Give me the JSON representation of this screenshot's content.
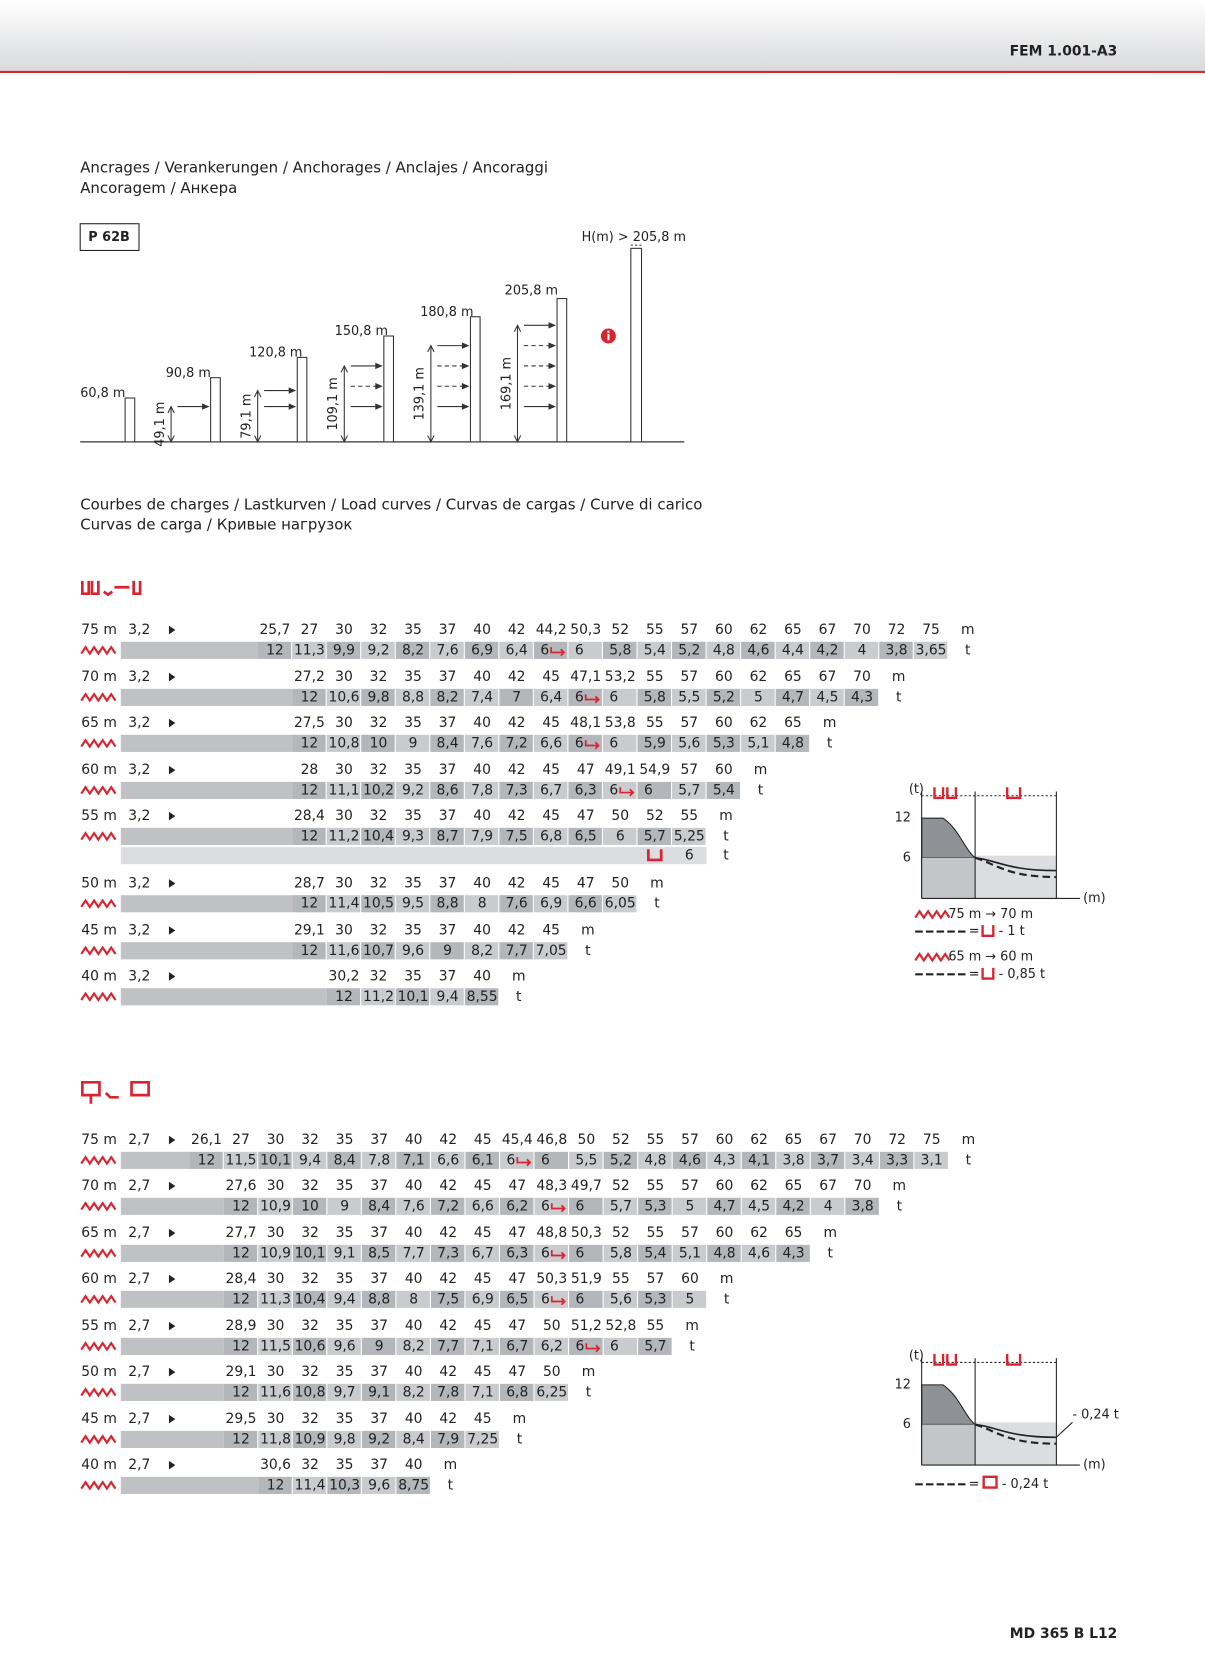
{
  "header": {
    "code": "FEM 1.001-A3"
  },
  "footer": {
    "model": "MD 365 B L12"
  },
  "anchorages": {
    "title_1": "Ancrages / Verankerungen / Anchorages / Anclajes / Ancoraggi",
    "title_2": "Ancoragem / Анкера",
    "model": "P 62B",
    "heights": [
      "60,8 m",
      "90,8 m",
      "120,8 m",
      "150,8 m",
      "180,8 m",
      "205,8 m"
    ],
    "max": "H(m) > 205,8 m",
    "spacings": [
      "49,1 m",
      "79,1 m",
      "109,1 m",
      "139,1 m",
      "169,1 m"
    ]
  },
  "load_curves": {
    "title_1": "Courbes de charges / Lastkurven / Load curves / Curvas de cargas / Curve di carico",
    "title_2": "Curvas de carga / Кривые нагрузок"
  },
  "tables": [
    {
      "units": {
        "radius": "m",
        "load": "t"
      },
      "rows": [
        {
          "jib": "75 m",
          "min": "3,2",
          "radii": [
            "25,7",
            "27",
            "30",
            "32",
            "35",
            "37",
            "40",
            "42",
            "44,2",
            "50,3",
            "52",
            "55",
            "57",
            "60",
            "62",
            "65",
            "67",
            "70",
            "72",
            "75"
          ],
          "loads": [
            "12",
            "11,3",
            "9,9",
            "9,2",
            "8,2",
            "7,6",
            "6,9",
            "6,4",
            "6",
            "6",
            "5,8",
            "5,4",
            "5,2",
            "4,8",
            "4,6",
            "4,4",
            "4,2",
            "4",
            "3,8",
            "3,65"
          ]
        },
        {
          "jib": "70 m",
          "min": "3,2",
          "radii": [
            "27,2",
            "30",
            "32",
            "35",
            "37",
            "40",
            "42",
            "45",
            "47,1",
            "53,2",
            "55",
            "57",
            "60",
            "62",
            "65",
            "67",
            "70"
          ],
          "loads": [
            "12",
            "10,6",
            "9,8",
            "8,8",
            "8,2",
            "7,4",
            "7",
            "6,4",
            "6",
            "6",
            "5,8",
            "5,5",
            "5,2",
            "5",
            "4,7",
            "4,5",
            "4,3"
          ]
        },
        {
          "jib": "65 m",
          "min": "3,2",
          "radii": [
            "27,5",
            "30",
            "32",
            "35",
            "37",
            "40",
            "42",
            "45",
            "48,1",
            "53,8",
            "55",
            "57",
            "60",
            "62",
            "65"
          ],
          "loads": [
            "12",
            "10,8",
            "10",
            "9",
            "8,4",
            "7,6",
            "7,2",
            "6,6",
            "6",
            "6",
            "5,9",
            "5,6",
            "5,3",
            "5,1",
            "4,8"
          ]
        },
        {
          "jib": "60 m",
          "min": "3,2",
          "radii": [
            "28",
            "30",
            "32",
            "35",
            "37",
            "40",
            "42",
            "45",
            "47",
            "49,1",
            "54,9",
            "57",
            "60"
          ],
          "loads": [
            "12",
            "11,1",
            "10,2",
            "9,2",
            "8,6",
            "7,8",
            "7,3",
            "6,7",
            "6,3",
            "6",
            "6",
            "5,7",
            "5,4"
          ]
        },
        {
          "jib": "55 m",
          "min": "3,2",
          "radii": [
            "28,4",
            "30",
            "32",
            "35",
            "37",
            "40",
            "42",
            "45",
            "47",
            "50",
            "52",
            "55"
          ],
          "loads": [
            "12",
            "11,2",
            "10,4",
            "9,3",
            "8,7",
            "7,9",
            "7,5",
            "6,8",
            "6,5",
            "6",
            "5,7",
            "5,25"
          ],
          "alt_load": "6"
        },
        {
          "jib": "50 m",
          "min": "3,2",
          "radii": [
            "28,7",
            "30",
            "32",
            "35",
            "37",
            "40",
            "42",
            "45",
            "47",
            "50"
          ],
          "loads": [
            "12",
            "11,4",
            "10,5",
            "9,5",
            "8,8",
            "8",
            "7,6",
            "6,9",
            "6,6",
            "6,05"
          ]
        },
        {
          "jib": "45 m",
          "min": "3,2",
          "radii": [
            "29,1",
            "30",
            "32",
            "35",
            "37",
            "40",
            "42",
            "45"
          ],
          "loads": [
            "12",
            "11,6",
            "10,7",
            "9,6",
            "9",
            "8,2",
            "7,7",
            "7,05"
          ]
        },
        {
          "jib": "40 m",
          "min": "3,2",
          "radii": [
            "30,2",
            "32",
            "35",
            "37",
            "40"
          ],
          "loads": [
            "12",
            "11,2",
            "10,1",
            "9,4",
            "8,55"
          ]
        }
      ]
    },
    {
      "units": {
        "radius": "m",
        "load": "t"
      },
      "rows": [
        {
          "jib": "75 m",
          "min": "2,7",
          "radii": [
            "26,1",
            "27",
            "30",
            "32",
            "35",
            "37",
            "40",
            "42",
            "45",
            "45,4",
            "46,8",
            "50",
            "52",
            "55",
            "57",
            "60",
            "62",
            "65",
            "67",
            "70",
            "72",
            "75"
          ],
          "loads": [
            "12",
            "11,5",
            "10,1",
            "9,4",
            "8,4",
            "7,8",
            "7,1",
            "6,6",
            "6,1",
            "6",
            "6",
            "5,5",
            "5,2",
            "4,8",
            "4,6",
            "4,3",
            "4,1",
            "3,8",
            "3,7",
            "3,4",
            "3,3",
            "3,1"
          ]
        },
        {
          "jib": "70 m",
          "min": "2,7",
          "radii": [
            "27,6",
            "30",
            "32",
            "35",
            "37",
            "40",
            "42",
            "45",
            "47",
            "48,3",
            "49,7",
            "52",
            "55",
            "57",
            "60",
            "62",
            "65",
            "67",
            "70"
          ],
          "loads": [
            "12",
            "10,9",
            "10",
            "9",
            "8,4",
            "7,6",
            "7,2",
            "6,6",
            "6,2",
            "6",
            "6",
            "5,7",
            "5,3",
            "5",
            "4,7",
            "4,5",
            "4,2",
            "4",
            "3,8"
          ]
        },
        {
          "jib": "65 m",
          "min": "2,7",
          "radii": [
            "27,7",
            "30",
            "32",
            "35",
            "37",
            "40",
            "42",
            "45",
            "47",
            "48,8",
            "50,3",
            "52",
            "55",
            "57",
            "60",
            "62",
            "65"
          ],
          "loads": [
            "12",
            "10,9",
            "10,1",
            "9,1",
            "8,5",
            "7,7",
            "7,3",
            "6,7",
            "6,3",
            "6",
            "6",
            "5,8",
            "5,4",
            "5,1",
            "4,8",
            "4,6",
            "4,3"
          ]
        },
        {
          "jib": "60 m",
          "min": "2,7",
          "radii": [
            "28,4",
            "30",
            "32",
            "35",
            "37",
            "40",
            "42",
            "45",
            "47",
            "50,3",
            "51,9",
            "55",
            "57",
            "60"
          ],
          "loads": [
            "12",
            "11,3",
            "10,4",
            "9,4",
            "8,8",
            "8",
            "7,5",
            "6,9",
            "6,5",
            "6",
            "6",
            "5,6",
            "5,3",
            "5"
          ]
        },
        {
          "jib": "55 m",
          "min": "2,7",
          "radii": [
            "28,9",
            "30",
            "32",
            "35",
            "37",
            "40",
            "42",
            "45",
            "47",
            "50",
            "51,2",
            "52,8",
            "55"
          ],
          "loads": [
            "12",
            "11,5",
            "10,6",
            "9,6",
            "9",
            "8,2",
            "7,7",
            "7,1",
            "6,7",
            "6,2",
            "6",
            "6",
            "5,7"
          ]
        },
        {
          "jib": "50 m",
          "min": "2,7",
          "radii": [
            "29,1",
            "30",
            "32",
            "35",
            "37",
            "40",
            "42",
            "45",
            "47",
            "50"
          ],
          "loads": [
            "12",
            "11,6",
            "10,8",
            "9,7",
            "9,1",
            "8,2",
            "7,8",
            "7,1",
            "6,8",
            "6,25"
          ]
        },
        {
          "jib": "45 m",
          "min": "2,7",
          "radii": [
            "29,5",
            "30",
            "32",
            "35",
            "37",
            "40",
            "42",
            "45"
          ],
          "loads": [
            "12",
            "11,8",
            "10,9",
            "9,8",
            "9,2",
            "8,4",
            "7,9",
            "7,25"
          ]
        },
        {
          "jib": "40 m",
          "min": "2,7",
          "radii": [
            "30,6",
            "32",
            "35",
            "37",
            "40"
          ],
          "loads": [
            "12",
            "11,4",
            "10,3",
            "9,6",
            "8,75"
          ]
        }
      ]
    }
  ],
  "side_1": {
    "t": "(t)",
    "y12": "12",
    "y6": "6",
    "m": "(m)",
    "note1": "75 m → 70 m",
    "eq": "=",
    "note1_val": "- 1 t",
    "note2": "65 m → 60 m",
    "note2_val": "- 0,85 t"
  },
  "side_2": {
    "t": "(t)",
    "y12": "12",
    "y6": "6",
    "m": "(m)",
    "val": "- 0,24 t",
    "eq": "=",
    "note_val": "- 0,24 t"
  }
}
